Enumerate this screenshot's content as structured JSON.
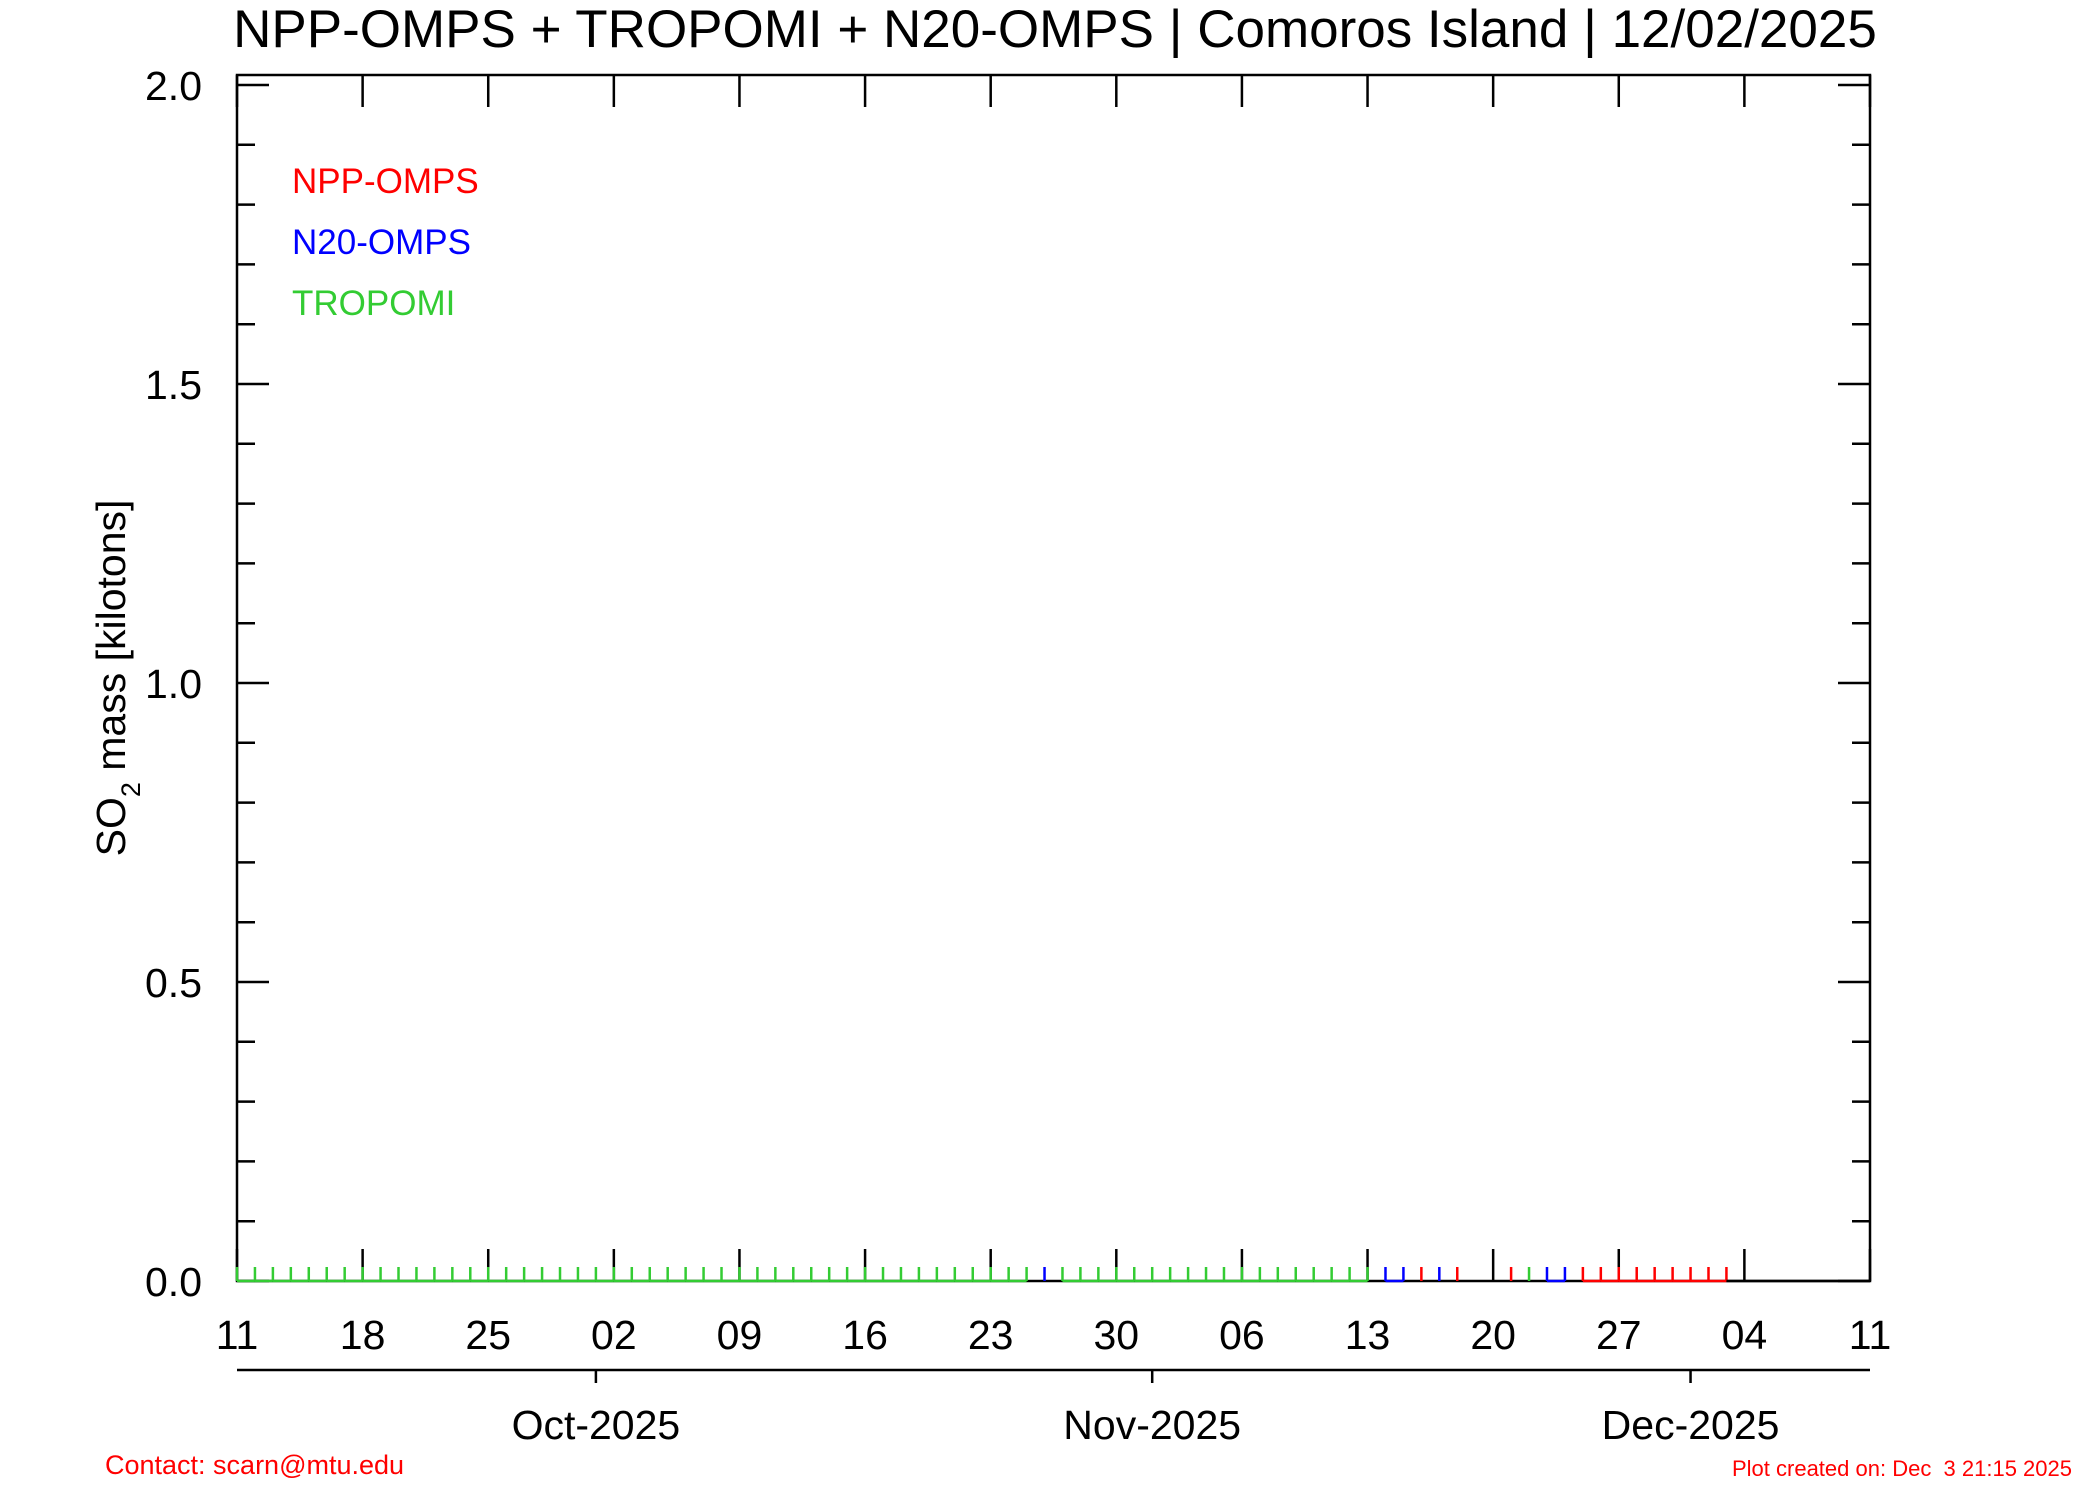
{
  "chart_data": {
    "type": "line",
    "title": "NPP-OMPS + TROPOMI + N20-OMPS | Comoros Island | 12/02/2025",
    "ylabel_main": "SO",
    "ylabel_sub": "2",
    "ylabel_rest": " mass [kilotons]",
    "ylim": [
      0.0,
      2.0
    ],
    "y_ticks": [
      "0.0",
      "0.5",
      "1.0",
      "1.5",
      "2.0"
    ],
    "x_range": [
      "2025-09-11",
      "2025-12-11"
    ],
    "x_tick_labels": [
      "11",
      "18",
      "25",
      "02",
      "09",
      "16",
      "23",
      "30",
      "06",
      "13",
      "20",
      "27",
      "04",
      "11"
    ],
    "month_labels": [
      "Oct-2025",
      "Nov-2025",
      "Dec-2025"
    ],
    "legend_position": "top-left",
    "series": [
      {
        "name": "NPP-OMPS",
        "color": "#ff0000",
        "dates": [
          "2025-11-16",
          "2025-11-18",
          "2025-11-21",
          "2025-11-25",
          "2025-11-26",
          "2025-11-27",
          "2025-11-28",
          "2025-11-29",
          "2025-11-30",
          "2025-12-01",
          "2025-12-02",
          "2025-12-03"
        ],
        "values": [
          0,
          0,
          0,
          0,
          0,
          0,
          0,
          0,
          0,
          0,
          0,
          0
        ]
      },
      {
        "name": "N20-OMPS",
        "color": "#0000ff",
        "dates": [
          "2025-10-26",
          "2025-11-14",
          "2025-11-15",
          "2025-11-17",
          "2025-11-23",
          "2025-11-24"
        ],
        "values": [
          0,
          0,
          0,
          0,
          0,
          0
        ]
      },
      {
        "name": "TROPOMI",
        "color": "#33cc33",
        "dates": [
          "2025-09-11",
          "2025-09-12",
          "2025-09-13",
          "2025-09-14",
          "2025-09-15",
          "2025-09-16",
          "2025-09-17",
          "2025-09-18",
          "2025-09-19",
          "2025-09-20",
          "2025-09-21",
          "2025-09-22",
          "2025-09-23",
          "2025-09-24",
          "2025-09-25",
          "2025-09-26",
          "2025-09-27",
          "2025-09-28",
          "2025-09-29",
          "2025-09-30",
          "2025-10-01",
          "2025-10-02",
          "2025-10-03",
          "2025-10-04",
          "2025-10-05",
          "2025-10-06",
          "2025-10-07",
          "2025-10-08",
          "2025-10-09",
          "2025-10-10",
          "2025-10-11",
          "2025-10-12",
          "2025-10-13",
          "2025-10-14",
          "2025-10-15",
          "2025-10-16",
          "2025-10-17",
          "2025-10-18",
          "2025-10-19",
          "2025-10-20",
          "2025-10-21",
          "2025-10-22",
          "2025-10-23",
          "2025-10-24",
          "2025-10-25",
          "2025-10-27",
          "2025-10-28",
          "2025-10-29",
          "2025-10-30",
          "2025-10-31",
          "2025-11-01",
          "2025-11-02",
          "2025-11-03",
          "2025-11-04",
          "2025-11-05",
          "2025-11-06",
          "2025-11-07",
          "2025-11-08",
          "2025-11-09",
          "2025-11-10",
          "2025-11-11",
          "2025-11-12",
          "2025-11-13",
          "2025-11-22"
        ],
        "values": [
          0,
          0,
          0,
          0,
          0,
          0,
          0,
          0,
          0,
          0,
          0,
          0,
          0,
          0,
          0,
          0,
          0,
          0,
          0,
          0,
          0,
          0,
          0,
          0,
          0,
          0,
          0,
          0,
          0,
          0,
          0,
          0,
          0,
          0,
          0,
          0,
          0,
          0,
          0,
          0,
          0,
          0,
          0,
          0,
          0,
          0,
          0,
          0,
          0,
          0,
          0,
          0,
          0,
          0,
          0,
          0,
          0,
          0,
          0,
          0,
          0,
          0,
          0,
          0
        ]
      }
    ]
  },
  "footer": {
    "contact": "Contact: scarn@mtu.edu",
    "created": "Plot created on: Dec  3 21:15 2025"
  },
  "colors": {
    "footer_text": "#ff0000",
    "axes": "#000000"
  }
}
